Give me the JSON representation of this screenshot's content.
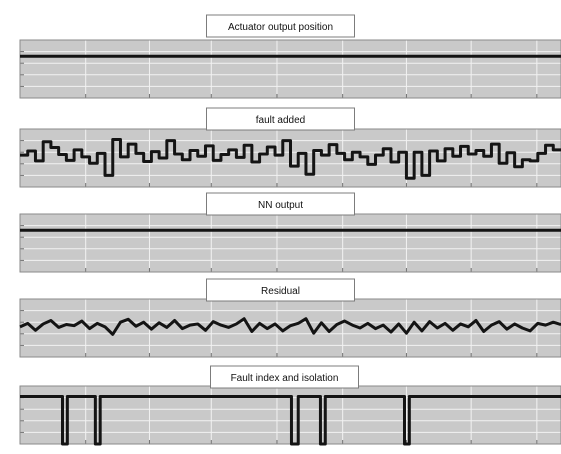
{
  "chart_data": [
    {
      "type": "line",
      "title": "Actuator output position",
      "grid": true,
      "series": [
        {
          "x": [
            0,
            560
          ],
          "y": [
            0.72,
            0.72
          ],
          "line": "step"
        }
      ]
    },
    {
      "type": "line",
      "title": "fault added",
      "grid": true,
      "series": [
        {
          "x": [
            0,
            8,
            16,
            24,
            32,
            40,
            48,
            56,
            64,
            72,
            80,
            88,
            96,
            104,
            112,
            120,
            128,
            136,
            144,
            152,
            160,
            168,
            176,
            184,
            192,
            200,
            208,
            216,
            224,
            232,
            240,
            248,
            256,
            264,
            272,
            280,
            288,
            296,
            304,
            312,
            320,
            328,
            336,
            344,
            352,
            360,
            368,
            376,
            384,
            392,
            400,
            408,
            416,
            424,
            432,
            440,
            448,
            456,
            464,
            472,
            480,
            488,
            496,
            504,
            512,
            520,
            528,
            536,
            544,
            552
          ],
          "y": [
            0.55,
            0.62,
            0.45,
            0.78,
            0.68,
            0.56,
            0.46,
            0.64,
            0.52,
            0.41,
            0.58,
            0.2,
            0.82,
            0.52,
            0.74,
            0.58,
            0.44,
            0.61,
            0.5,
            0.8,
            0.57,
            0.47,
            0.63,
            0.53,
            0.71,
            0.46,
            0.56,
            0.64,
            0.51,
            0.72,
            0.43,
            0.57,
            0.69,
            0.55,
            0.8,
            0.36,
            0.58,
            0.22,
            0.63,
            0.55,
            0.73,
            0.58,
            0.47,
            0.6,
            0.52,
            0.39,
            0.55,
            0.66,
            0.43,
            0.6,
            0.15,
            0.6,
            0.2,
            0.62,
            0.45,
            0.66,
            0.53,
            0.7,
            0.57,
            0.63,
            0.53,
            0.74,
            0.41,
            0.59,
            0.35,
            0.47,
            0.45,
            0.58,
            0.72,
            0.64
          ],
          "line": "step"
        }
      ]
    },
    {
      "type": "line",
      "title": "NN output",
      "grid": true,
      "series": [
        {
          "x": [
            0,
            560
          ],
          "y": [
            0.72,
            0.72
          ],
          "line": "step"
        }
      ]
    },
    {
      "type": "line",
      "title": "Residual",
      "grid": true,
      "series": [
        {
          "x": [
            0,
            8,
            16,
            24,
            32,
            40,
            48,
            56,
            64,
            72,
            80,
            88,
            96,
            104,
            112,
            120,
            128,
            136,
            144,
            152,
            160,
            168,
            176,
            184,
            192,
            200,
            208,
            216,
            224,
            232,
            240,
            248,
            256,
            264,
            272,
            280,
            288,
            296,
            304,
            312,
            320,
            328,
            336,
            344,
            352,
            360,
            368,
            376,
            384,
            392,
            400,
            408,
            416,
            424,
            432,
            440,
            448,
            456,
            464,
            472,
            480,
            488,
            496,
            504,
            512,
            520,
            528,
            536,
            544,
            552,
            560
          ],
          "y": [
            0.52,
            0.58,
            0.46,
            0.57,
            0.63,
            0.51,
            0.56,
            0.54,
            0.62,
            0.49,
            0.58,
            0.52,
            0.39,
            0.6,
            0.65,
            0.53,
            0.6,
            0.48,
            0.59,
            0.51,
            0.63,
            0.49,
            0.55,
            0.57,
            0.46,
            0.61,
            0.55,
            0.51,
            0.57,
            0.66,
            0.44,
            0.58,
            0.49,
            0.57,
            0.45,
            0.54,
            0.58,
            0.66,
            0.41,
            0.59,
            0.44,
            0.56,
            0.62,
            0.55,
            0.5,
            0.58,
            0.49,
            0.55,
            0.43,
            0.57,
            0.41,
            0.6,
            0.45,
            0.61,
            0.5,
            0.58,
            0.46,
            0.57,
            0.52,
            0.63,
            0.44,
            0.55,
            0.61,
            0.48,
            0.57,
            0.5,
            0.45,
            0.58,
            0.55,
            0.6,
            0.56
          ],
          "line": "polyline"
        }
      ]
    },
    {
      "type": "line",
      "title": "Fault index and isolation",
      "grid": true,
      "series": [
        {
          "x": [
            0,
            44,
            49,
            78,
            83,
            281,
            288,
            311,
            316,
            398,
            403,
            560
          ],
          "y": [
            0.82,
            0.0,
            0.82,
            0.0,
            0.82,
            0.0,
            0.82,
            0.0,
            0.82,
            0.0,
            0.82,
            0.82
          ],
          "line": "step"
        }
      ]
    }
  ]
}
